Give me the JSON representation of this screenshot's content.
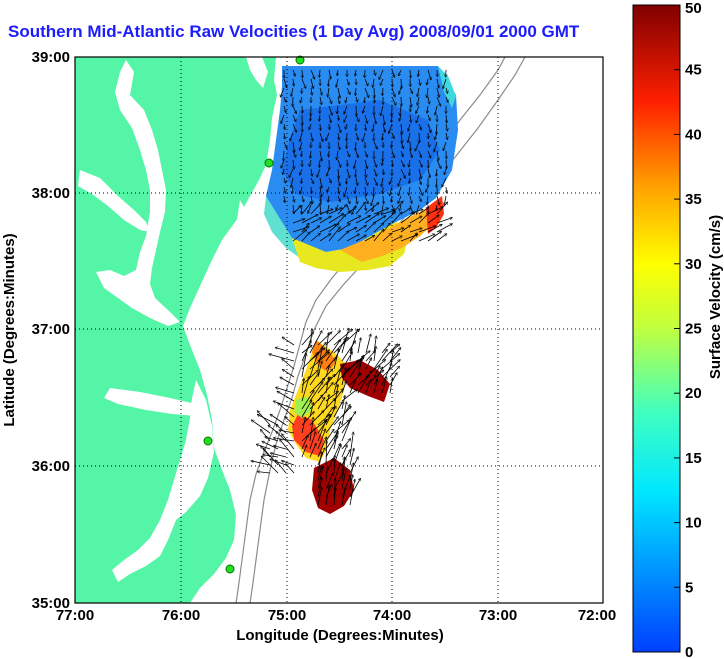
{
  "title": "Southern Mid-Atlantic Raw Velocities (1 Day Avg) 2008/09/01 2000 GMT",
  "colors": {
    "title": "#1c1cff",
    "land": "#55f5a8",
    "water": "#ffffff",
    "bathymetry": "#8c8c8c",
    "station": "#22dd22"
  },
  "map": {
    "xlabel": "Longitude (Degrees:Minutes)",
    "ylabel": "Latitude (Degrees:Minutes)",
    "xticks": [
      "77:00",
      "76:00",
      "75:00",
      "74:00",
      "73:00",
      "72:00"
    ],
    "yticks": [
      "39:00",
      "38:00",
      "37:00",
      "36:00",
      "35:00"
    ],
    "grid": "dotted"
  },
  "colorbar": {
    "label": "Surface Velocity (cm/s)",
    "ticks": [
      "50",
      "45",
      "40",
      "35",
      "30",
      "25",
      "20",
      "15",
      "10",
      "5",
      "0"
    ],
    "range": [
      0,
      50
    ],
    "colormap": "jet"
  },
  "legend_icons": [
    "station-dot-icon",
    "velocity-arrow-icon"
  ]
}
